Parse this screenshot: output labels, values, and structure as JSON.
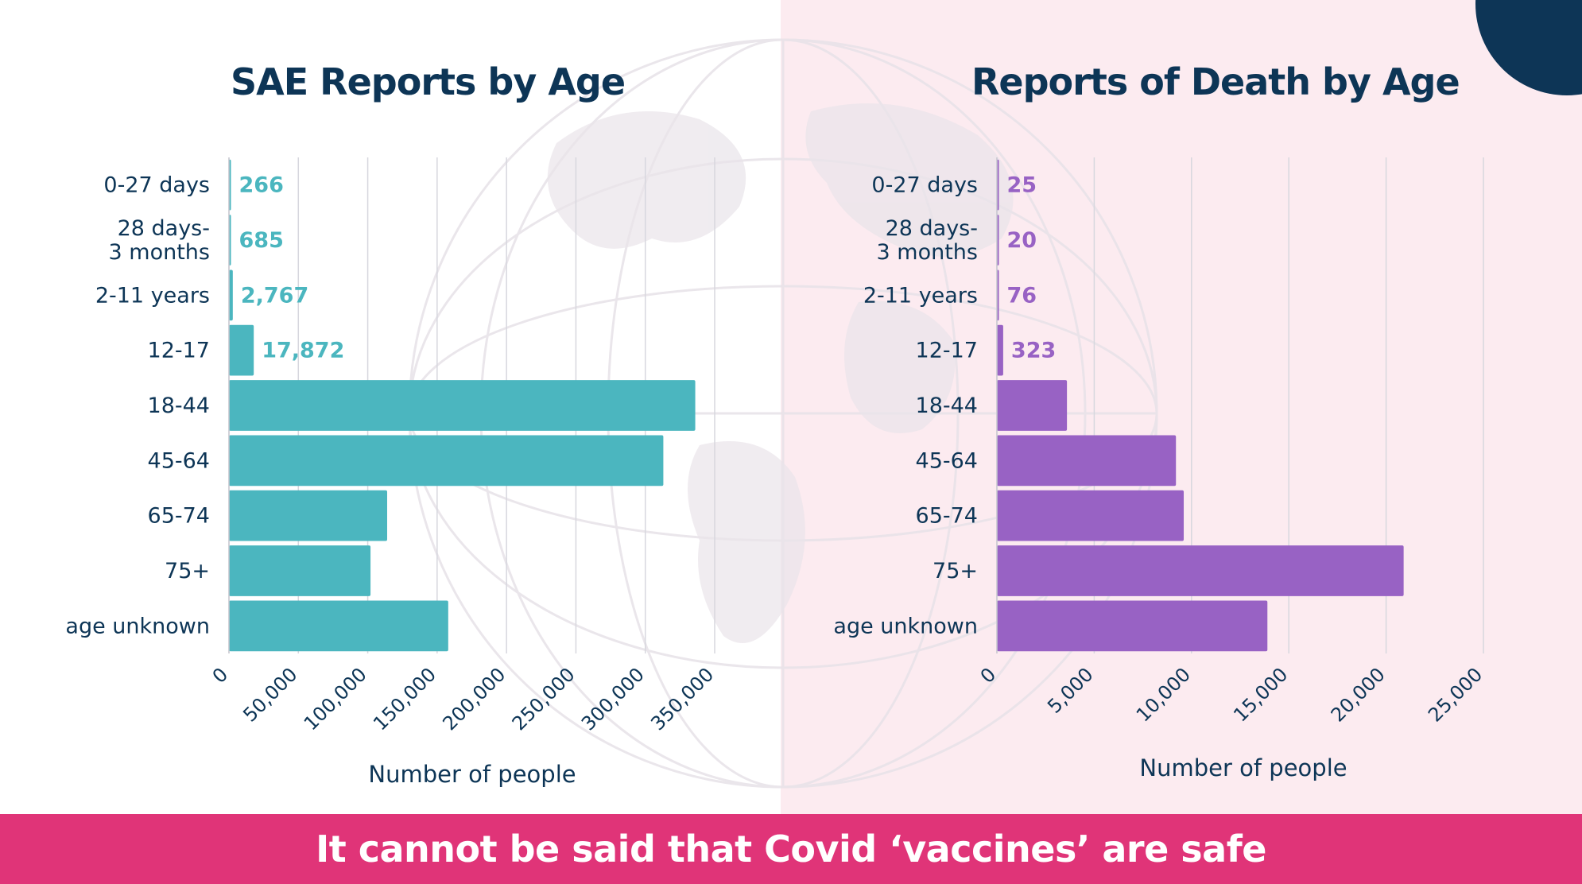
{
  "colors": {
    "teal": "#4bb6bf",
    "purple": "#9862c4",
    "navy": "#0d3556",
    "pink_band": "#e03478",
    "pink_bg": "#fcebf0"
  },
  "icons": [
    "globe-map-watermark"
  ],
  "footer": {
    "text": "It cannot be said that Covid ‘vaccines’ are safe"
  },
  "chart_data": [
    {
      "type": "bar",
      "orientation": "horizontal",
      "title": "SAE Reports by Age",
      "xlabel": "Number of people",
      "ylabel": "",
      "categories": [
        "0-27 days",
        "28 days-\n3 months",
        "2-11 years",
        "12-17",
        "18-44",
        "45-64",
        "65-74",
        "75+",
        "age unknown"
      ],
      "values": [
        266,
        685,
        2767,
        17872,
        336000,
        313000,
        114000,
        102000,
        158000
      ],
      "data_labels": [
        "266",
        "685",
        "2,767",
        "17,872",
        "",
        "",
        "",
        "",
        ""
      ],
      "xlim": [
        0,
        350000
      ],
      "ticks": [
        0,
        50000,
        100000,
        150000,
        200000,
        250000,
        300000,
        350000
      ],
      "tick_labels": [
        "0",
        "50,000",
        "100,000",
        "150,000",
        "200,000",
        "250,000",
        "300,000",
        "350,000"
      ],
      "grid": true,
      "color": "#4bb6bf"
    },
    {
      "type": "bar",
      "orientation": "horizontal",
      "title": "Reports of Death by Age",
      "xlabel": "Number of people",
      "ylabel": "",
      "categories": [
        "0-27 days",
        "28 days-\n3 months",
        "2-11 years",
        "12-17",
        "18-44",
        "45-64",
        "65-74",
        "75+",
        "age unknown"
      ],
      "values": [
        25,
        20,
        76,
        323,
        3600,
        9200,
        9600,
        20900,
        13900
      ],
      "data_labels": [
        "25",
        "20",
        "76",
        "323",
        "",
        "",
        "",
        "",
        ""
      ],
      "xlim": [
        0,
        25000
      ],
      "ticks": [
        0,
        5000,
        10000,
        15000,
        20000,
        25000
      ],
      "tick_labels": [
        "0",
        "5,000",
        "10,000",
        "15,000",
        "20,000",
        "25,000"
      ],
      "grid": true,
      "color": "#9862c4"
    }
  ]
}
